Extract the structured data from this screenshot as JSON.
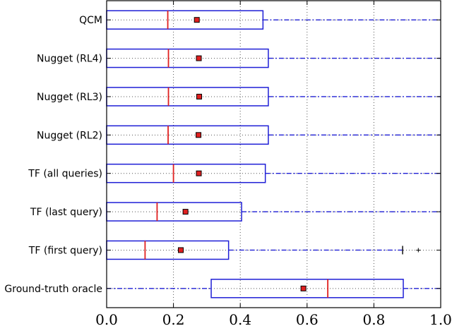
{
  "chart_data": {
    "type": "boxplot",
    "orientation": "horizontal",
    "grid": true,
    "xlim": [
      0.0,
      1.0
    ],
    "xticks": [
      "0.0",
      "0.2",
      "0.4",
      "0.6",
      "0.8",
      "1.0"
    ],
    "colors": {
      "box": "#1f1fd6",
      "median": "#e02020",
      "mean": "#e02020",
      "whisker": "#1f1fd6",
      "grid": "#555555"
    },
    "series": [
      {
        "label": "QCM",
        "min": 0.0,
        "q1": 0.0,
        "median": 0.183,
        "q3": 0.468,
        "max": 1.0,
        "mean": 0.27
      },
      {
        "label": "Nugget (RL4)",
        "min": 0.0,
        "q1": 0.0,
        "median": 0.185,
        "q3": 0.484,
        "max": 1.0,
        "mean": 0.276
      },
      {
        "label": "Nugget (RL3)",
        "min": 0.0,
        "q1": 0.0,
        "median": 0.185,
        "q3": 0.484,
        "max": 1.0,
        "mean": 0.277
      },
      {
        "label": "Nugget (RL2)",
        "min": 0.0,
        "q1": 0.0,
        "median": 0.184,
        "q3": 0.484,
        "max": 1.0,
        "mean": 0.275
      },
      {
        "label": "TF (all queries)",
        "min": 0.0,
        "q1": 0.0,
        "median": 0.2,
        "q3": 0.475,
        "max": 1.0,
        "mean": 0.276
      },
      {
        "label": "TF (last query)",
        "min": 0.0,
        "q1": 0.0,
        "median": 0.151,
        "q3": 0.404,
        "max": 1.0,
        "mean": 0.236
      },
      {
        "label": "TF (first query)",
        "min": 0.0,
        "q1": 0.0,
        "median": 0.115,
        "q3": 0.365,
        "max": 0.886,
        "mean": 0.222,
        "outliers": [
          0.933
        ]
      },
      {
        "label": "Ground-truth oracle",
        "min": 0.0,
        "q1": 0.313,
        "median": 0.662,
        "q3": 0.888,
        "max": 1.0,
        "mean": 0.589
      }
    ]
  }
}
